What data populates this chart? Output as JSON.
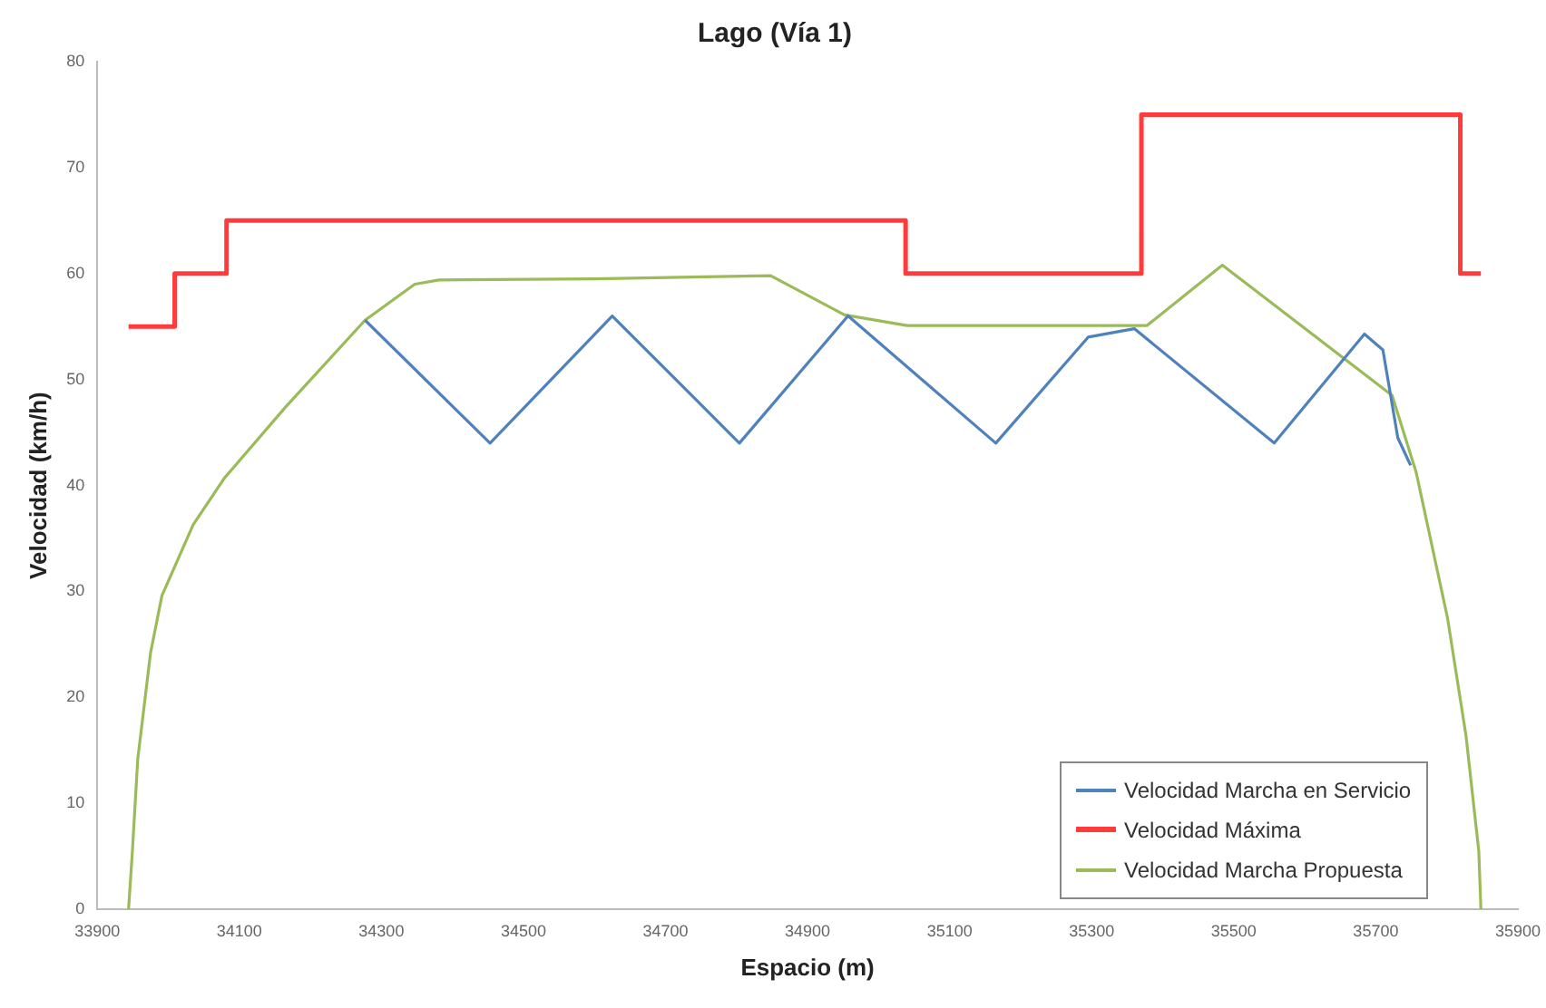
{
  "chart_data": {
    "type": "line",
    "title": "Lago (Vía 1)",
    "xlabel": "Espacio (m)",
    "ylabel": "Velocidad (km/h)",
    "xlim": [
      33900,
      35900
    ],
    "xticks": [
      33900,
      34100,
      34300,
      34500,
      34700,
      34900,
      35100,
      35300,
      35500,
      35700,
      35900
    ],
    "ylim": [
      0,
      80
    ],
    "yticks": [
      0,
      10,
      20,
      30,
      40,
      50,
      60,
      70,
      80
    ],
    "grid": false,
    "legend": "bottom right",
    "marker": "none",
    "line_style": "solid",
    "series": [
      {
        "name": "Velocidad Marcha en Servicio",
        "color": "#4f81bd",
        "x": [
          34277,
          34453,
          34625,
          34804,
          34957,
          35165,
          35295,
          35360,
          35557,
          35684,
          35710,
          35731,
          35749
        ],
        "values": [
          55.6,
          44,
          56,
          44,
          56,
          44,
          54,
          54.8,
          44,
          54.3,
          52.8,
          44.5,
          41.9
        ]
      },
      {
        "name": "Velocidad Máxima",
        "type": "step",
        "color": "#ff3b3b",
        "x": [
          33944,
          34009,
          34082,
          35038,
          35370,
          35819,
          35848
        ],
        "values": [
          55,
          60,
          65,
          60,
          75,
          60,
          60
        ]
      },
      {
        "name": "Velocidad Marcha Propuesta",
        "color": "#9bbb59",
        "x": [
          33944,
          33949,
          33957,
          33975,
          33991,
          34035,
          34079,
          34165,
          34277,
          34347,
          34381,
          34600,
          34848,
          34952,
          35040,
          35378,
          35484,
          35723,
          35757,
          35801,
          35827,
          35845,
          35848
        ],
        "values": [
          0,
          5,
          14.2,
          24.2,
          29.6,
          36.3,
          40.7,
          47.4,
          55.6,
          59,
          59.4,
          59.5,
          59.8,
          56.1,
          55.1,
          55.1,
          60.8,
          48.5,
          41.2,
          27.5,
          16.4,
          5.5,
          0
        ]
      }
    ]
  }
}
